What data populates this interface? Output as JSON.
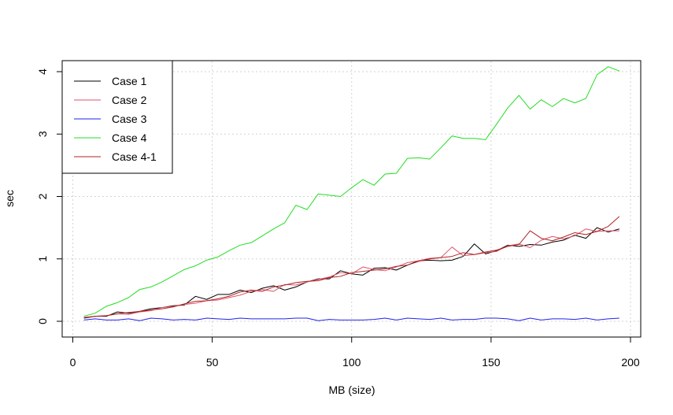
{
  "chart_data": {
    "type": "line",
    "title": "",
    "xlabel": "MB (size)",
    "ylabel": "sec",
    "xlim": [
      0,
      200
    ],
    "ylim": [
      0,
      4
    ],
    "xticks": [
      0,
      50,
      100,
      150,
      200
    ],
    "yticks": [
      0,
      1,
      2,
      3,
      4
    ],
    "grid": true,
    "legend_position": "top-left",
    "x": [
      4,
      8,
      12,
      16,
      20,
      24,
      28,
      32,
      36,
      40,
      44,
      48,
      52,
      56,
      60,
      64,
      68,
      72,
      76,
      80,
      84,
      88,
      92,
      96,
      100,
      104,
      108,
      112,
      116,
      120,
      124,
      128,
      132,
      136,
      140,
      144,
      148,
      152,
      156,
      160,
      164,
      168,
      172,
      176,
      180,
      184,
      188,
      192,
      196
    ],
    "series": [
      {
        "name": "Case 1",
        "color": "#000000",
        "values": [
          0.05,
          0.08,
          0.08,
          0.15,
          0.13,
          0.16,
          0.2,
          0.22,
          0.25,
          0.26,
          0.4,
          0.35,
          0.43,
          0.43,
          0.5,
          0.46,
          0.53,
          0.57,
          0.5,
          0.55,
          0.63,
          0.68,
          0.68,
          0.81,
          0.76,
          0.74,
          0.85,
          0.86,
          0.82,
          0.9,
          0.97,
          0.98,
          0.97,
          0.98,
          1.04,
          1.24,
          1.08,
          1.13,
          1.22,
          1.2,
          1.23,
          1.22,
          1.27,
          1.3,
          1.38,
          1.33,
          1.5,
          1.43,
          1.48
        ]
      },
      {
        "name": "Case 2",
        "color": "#df536b",
        "values": [
          0.06,
          0.08,
          0.09,
          0.12,
          0.11,
          0.15,
          0.17,
          0.22,
          0.24,
          0.27,
          0.29,
          0.33,
          0.34,
          0.38,
          0.42,
          0.48,
          0.51,
          0.48,
          0.59,
          0.58,
          0.63,
          0.67,
          0.71,
          0.78,
          0.76,
          0.87,
          0.83,
          0.81,
          0.87,
          0.94,
          0.97,
          1.01,
          1.02,
          1.19,
          1.05,
          1.07,
          1.1,
          1.12,
          1.21,
          1.24,
          1.18,
          1.3,
          1.36,
          1.32,
          1.37,
          1.48,
          1.44,
          1.45,
          1.45
        ]
      },
      {
        "name": "Case 3",
        "color": "#2222ee",
        "values": [
          0.02,
          0.04,
          0.02,
          0.02,
          0.04,
          0.01,
          0.05,
          0.04,
          0.02,
          0.03,
          0.02,
          0.05,
          0.04,
          0.03,
          0.05,
          0.04,
          0.04,
          0.04,
          0.04,
          0.05,
          0.05,
          0.01,
          0.03,
          0.02,
          0.02,
          0.02,
          0.03,
          0.05,
          0.02,
          0.05,
          0.04,
          0.03,
          0.05,
          0.02,
          0.03,
          0.03,
          0.05,
          0.05,
          0.04,
          0.01,
          0.05,
          0.02,
          0.04,
          0.04,
          0.03,
          0.05,
          0.02,
          0.04,
          0.05
        ]
      },
      {
        "name": "Case 4",
        "color": "#22dd22",
        "values": [
          0.08,
          0.13,
          0.24,
          0.3,
          0.38,
          0.51,
          0.55,
          0.63,
          0.73,
          0.83,
          0.89,
          0.98,
          1.03,
          1.13,
          1.22,
          1.26,
          1.37,
          1.48,
          1.58,
          1.86,
          1.79,
          2.04,
          2.02,
          2.0,
          2.14,
          2.27,
          2.18,
          2.36,
          2.37,
          2.61,
          2.62,
          2.6,
          2.78,
          2.97,
          2.93,
          2.93,
          2.91,
          3.16,
          3.42,
          3.62,
          3.4,
          3.55,
          3.44,
          3.57,
          3.5,
          3.57,
          3.95,
          4.08,
          4.01
        ]
      },
      {
        "name": "Case 4-1",
        "color": "#b22222",
        "values": [
          0.06,
          0.08,
          0.09,
          0.12,
          0.14,
          0.16,
          0.18,
          0.2,
          0.23,
          0.28,
          0.32,
          0.33,
          0.36,
          0.4,
          0.47,
          0.5,
          0.48,
          0.55,
          0.58,
          0.62,
          0.64,
          0.65,
          0.7,
          0.72,
          0.78,
          0.8,
          0.82,
          0.84,
          0.88,
          0.9,
          0.96,
          1.0,
          1.02,
          1.04,
          1.1,
          1.07,
          1.11,
          1.14,
          1.2,
          1.23,
          1.45,
          1.33,
          1.29,
          1.35,
          1.42,
          1.39,
          1.44,
          1.52,
          1.68
        ]
      }
    ]
  }
}
